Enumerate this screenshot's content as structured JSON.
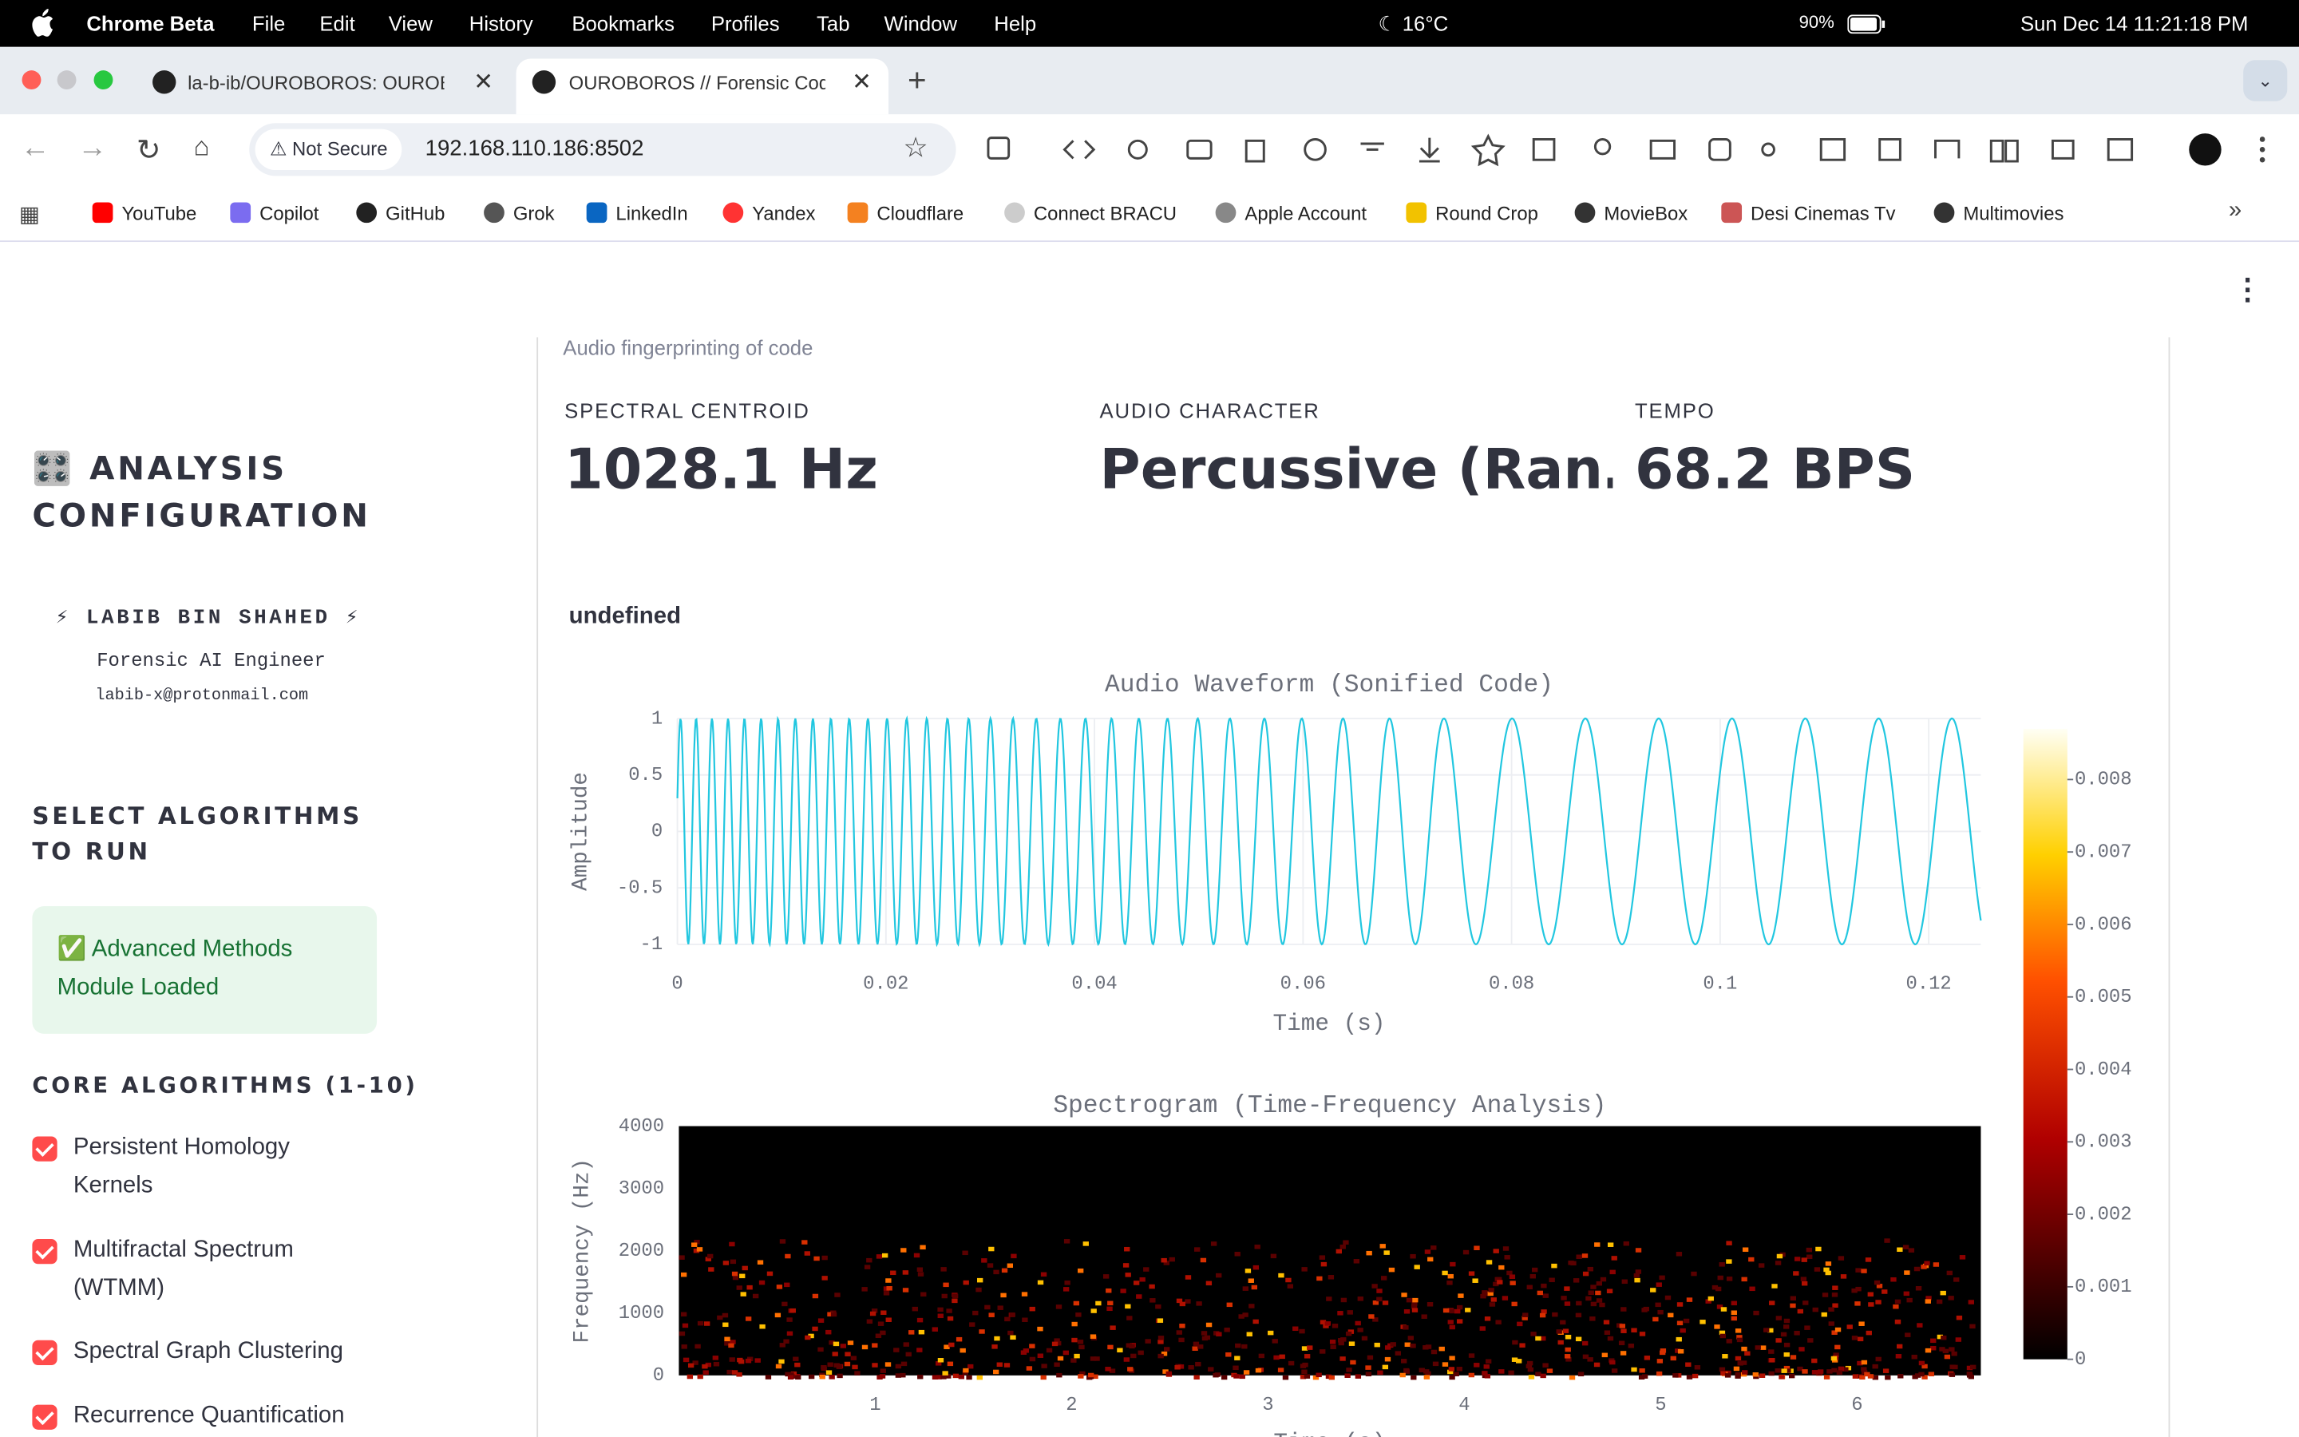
{
  "menubar": {
    "app": "Chrome Beta",
    "menus": [
      "File",
      "Edit",
      "View",
      "History",
      "Bookmarks",
      "Profiles",
      "Tab",
      "Window",
      "Help"
    ],
    "weather": "16°C",
    "battery": "90%",
    "datetime": "Sun Dec 14  11:21:18 PM"
  },
  "tabs": [
    {
      "title": "la-b-ib/OUROBOROS: OUROBOROS"
    },
    {
      "title": "OUROBOROS // Forensic Code"
    }
  ],
  "address": {
    "security": "Not Secure",
    "url": "192.168.110.186:8502"
  },
  "bookmarks": [
    "YouTube",
    "Copilot",
    "GitHub",
    "Grok",
    "LinkedIn",
    "Yandex",
    "Cloudflare",
    "Connect BRACU",
    "Apple Account",
    "Round Crop",
    "MovieBox",
    "Desi Cinemas Tv",
    "Multimovies"
  ],
  "sidebar": {
    "title": "🎛️ ANALYSIS CONFIGURATION",
    "author": "⚡ LABIB BIN SHAHED ⚡",
    "role": "Forensic AI Engineer",
    "email": "labib-x@protonmail.com",
    "select_heading": "SELECT ALGORITHMS TO RUN",
    "status": "✅ Advanced Methods Module Loaded",
    "core_heading": "CORE ALGORITHMS (1-10)",
    "algorithms": [
      "Persistent Homology Kernels",
      "Multifractal Spectrum (WTMM)",
      "Spectral Graph Clustering",
      "Recurrence Quantification"
    ]
  },
  "main": {
    "caption": "Audio fingerprinting of code",
    "metrics": [
      {
        "label": "SPECTRAL CENTROID",
        "value": "1028.1 Hz"
      },
      {
        "label": "AUDIO CHARACTER",
        "value": "Percussive (Ran…"
      },
      {
        "label": "TEMPO",
        "value": "68.2 BPS"
      }
    ],
    "section_label": "undefined",
    "waveform": {
      "type": "line",
      "title": "Audio Waveform (Sonified Code)",
      "x_label": "Time (s)",
      "y_label": "Amplitude",
      "color": "#22c7e0",
      "xlim": [
        0,
        0.125
      ],
      "xticks": [
        0,
        0.02,
        0.04,
        0.06,
        0.08,
        0.1,
        0.12
      ],
      "ylim": [
        -1,
        1
      ],
      "yticks": [
        -1,
        -0.5,
        0,
        0.5,
        1
      ]
    },
    "spectrogram": {
      "type": "heatmap",
      "title": "Spectrogram (Time-Frequency Analysis)",
      "x_label": "Time (s)",
      "y_label": "Frequency (Hz)",
      "xlim": [
        0,
        6.63
      ],
      "xticks": [
        1,
        2,
        3,
        4,
        5,
        6
      ],
      "ylim": [
        0,
        4000
      ],
      "yticks": [
        0,
        1000,
        2000,
        3000,
        4000
      ],
      "colorbar": {
        "lim": [
          0,
          0.0087
        ],
        "ticks": [
          0,
          0.001,
          0.002,
          0.003,
          0.004,
          0.005,
          0.006,
          0.007,
          0.008
        ]
      }
    }
  }
}
